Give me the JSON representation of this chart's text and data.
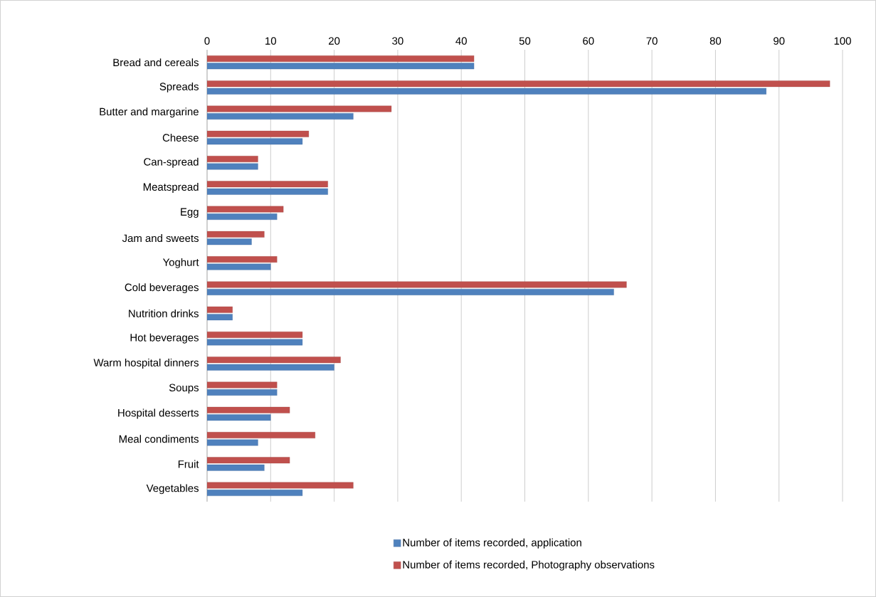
{
  "chart_data": {
    "type": "bar",
    "orientation": "horizontal",
    "categories": [
      "Bread and cereals",
      "Spreads",
      "Butter and margarine",
      "Cheese",
      "Can-spread",
      "Meatspread",
      "Egg",
      "Jam and sweets",
      "Yoghurt",
      "Cold beverages",
      "Nutrition drinks",
      "Hot beverages",
      "Warm hospital dinners",
      "Soups",
      "Hospital desserts",
      "Meal condiments",
      "Fruit",
      "Vegetables"
    ],
    "series": [
      {
        "name": "Number of items recorded, application",
        "color": "#4f81bd",
        "values": [
          42,
          88,
          23,
          15,
          8,
          19,
          11,
          7,
          10,
          64,
          4,
          15,
          20,
          11,
          10,
          8,
          9,
          15
        ]
      },
      {
        "name": "Number of items recorded, Photography observations",
        "color": "#c0504d",
        "values": [
          42,
          98,
          29,
          16,
          8,
          19,
          12,
          9,
          11,
          66,
          4,
          15,
          21,
          11,
          13,
          17,
          13,
          23
        ]
      }
    ],
    "xlim": [
      0,
      100
    ],
    "xticks": [
      0,
      10,
      20,
      30,
      40,
      50,
      60,
      70,
      80,
      90,
      100
    ],
    "grid": "x",
    "legend": "bottom"
  }
}
